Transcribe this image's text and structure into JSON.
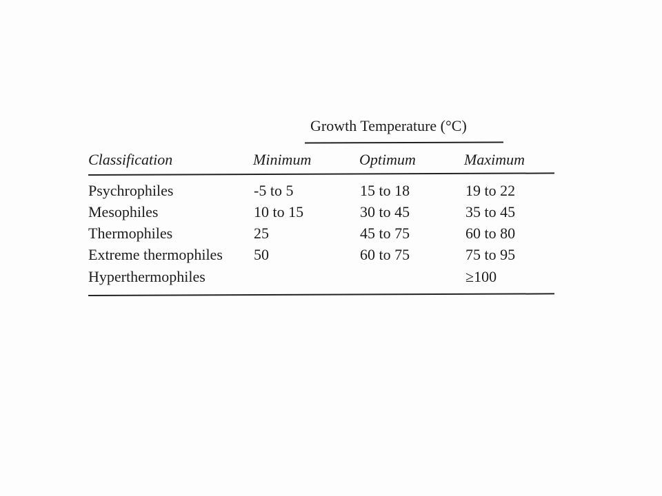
{
  "table": {
    "group_header": "Growth Temperature (°C)",
    "columns": {
      "classification": "Classification",
      "minimum": "Minimum",
      "optimum": "Optimum",
      "maximum": "Maximum"
    },
    "rows": [
      {
        "classification": "Psychrophiles",
        "minimum": "-5 to 5",
        "optimum": "15 to 18",
        "maximum": "19 to 22"
      },
      {
        "classification": "Mesophiles",
        "minimum": "10 to 15",
        "optimum": "30 to 45",
        "maximum": "35 to 45"
      },
      {
        "classification": "Thermophiles",
        "minimum": "25",
        "optimum": "45 to 75",
        "maximum": "60 to 80"
      },
      {
        "classification": "Extreme thermophiles",
        "minimum": "50",
        "optimum": "60 to 75",
        "maximum": "75 to 95"
      },
      {
        "classification": "Hyperthermophiles",
        "minimum": "",
        "optimum": "",
        "maximum": "≥100"
      }
    ]
  }
}
